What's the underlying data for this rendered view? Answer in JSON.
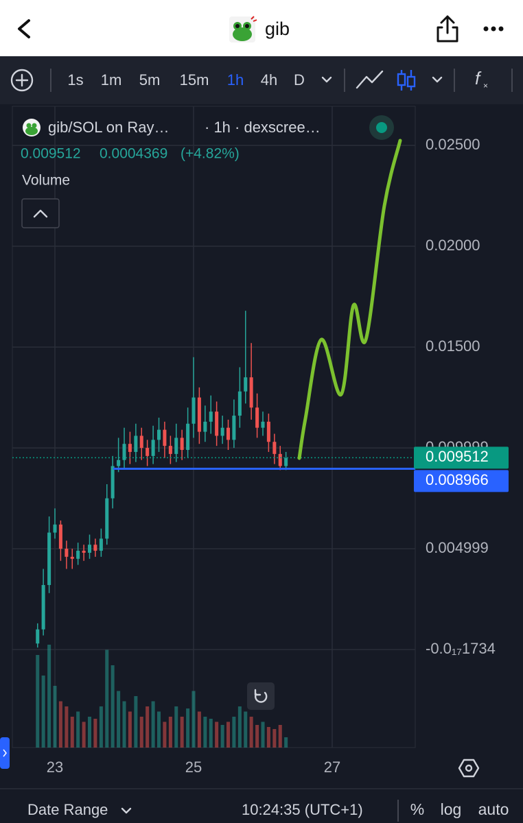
{
  "header": {
    "title": "gib"
  },
  "toolbar": {
    "intervals": [
      "1s",
      "1m",
      "5m",
      "15m",
      "1h",
      "4h",
      "D"
    ],
    "active_interval": "1h"
  },
  "legend": {
    "symbol": "gib/SOL on Ray…",
    "source": "· 1h · dexscree…",
    "change_label": "(+4.82%)",
    "volume_label": "Volume"
  },
  "chart_data": {
    "type": "candlestick",
    "up_color": "#26a69a",
    "down_color": "#ef5350",
    "x": [
      22.75,
      22.833,
      22.917,
      23.0,
      23.083,
      23.167,
      23.25,
      23.333,
      23.417,
      23.5,
      23.583,
      23.667,
      23.75,
      23.833,
      23.917,
      24.0,
      24.083,
      24.167,
      24.25,
      24.333,
      24.417,
      24.5,
      24.583,
      24.667,
      24.75,
      24.833,
      24.917,
      25.0,
      25.083,
      25.167,
      25.25,
      25.333,
      25.417,
      25.5,
      25.583,
      25.667,
      25.75,
      25.833,
      25.917,
      26.0,
      26.083,
      26.167,
      26.25,
      26.333
    ],
    "open": [
      0.0003,
      0.001,
      0.0032,
      0.0058,
      0.0062,
      0.005,
      0.0046,
      0.0045,
      0.0049,
      0.0048,
      0.0052,
      0.0049,
      0.0055,
      0.0075,
      0.0091,
      0.0094,
      0.0102,
      0.0098,
      0.0106,
      0.01,
      0.0096,
      0.0104,
      0.0109,
      0.0101,
      0.0097,
      0.0105,
      0.0099,
      0.0112,
      0.0125,
      0.0108,
      0.0113,
      0.0118,
      0.0106,
      0.011,
      0.0104,
      0.0116,
      0.0128,
      0.0135,
      0.012,
      0.011,
      0.0113,
      0.0103,
      0.0097,
      0.0091
    ],
    "high": [
      0.0013,
      0.004,
      0.0066,
      0.007,
      0.0064,
      0.0054,
      0.005,
      0.0053,
      0.0052,
      0.0057,
      0.0055,
      0.006,
      0.0082,
      0.0096,
      0.0105,
      0.011,
      0.0108,
      0.0112,
      0.011,
      0.0104,
      0.0111,
      0.0115,
      0.0113,
      0.0106,
      0.0112,
      0.0109,
      0.012,
      0.0145,
      0.013,
      0.0121,
      0.0126,
      0.0123,
      0.0116,
      0.0114,
      0.0124,
      0.014,
      0.0168,
      0.0152,
      0.0127,
      0.0118,
      0.0117,
      0.0107,
      0.0101,
      0.0098
    ],
    "low": [
      0.0001,
      0.0007,
      0.0028,
      0.0055,
      0.0044,
      0.004,
      0.004,
      0.0042,
      0.0044,
      0.0045,
      0.0046,
      0.0046,
      0.0052,
      0.007,
      0.0088,
      0.009,
      0.0092,
      0.0093,
      0.0094,
      0.0091,
      0.0092,
      0.0098,
      0.0095,
      0.0092,
      0.0093,
      0.0094,
      0.0095,
      0.0105,
      0.0102,
      0.0103,
      0.0107,
      0.0101,
      0.0102,
      0.0099,
      0.01,
      0.011,
      0.0122,
      0.0114,
      0.0105,
      0.0106,
      0.0098,
      0.0092,
      0.0089,
      0.0089
    ],
    "close": [
      0.001,
      0.0032,
      0.0058,
      0.0062,
      0.005,
      0.0046,
      0.0045,
      0.0049,
      0.0048,
      0.0052,
      0.0049,
      0.0055,
      0.0075,
      0.0091,
      0.0094,
      0.0102,
      0.0098,
      0.0106,
      0.01,
      0.0096,
      0.0104,
      0.0109,
      0.0101,
      0.0097,
      0.0105,
      0.0099,
      0.0112,
      0.0125,
      0.0108,
      0.0113,
      0.0118,
      0.0106,
      0.011,
      0.0104,
      0.0116,
      0.0128,
      0.0135,
      0.012,
      0.011,
      0.0113,
      0.0103,
      0.0097,
      0.0091,
      0.0095
    ],
    "volume": [
      90,
      70,
      100,
      60,
      45,
      40,
      30,
      35,
      25,
      30,
      28,
      40,
      95,
      80,
      55,
      45,
      35,
      50,
      30,
      40,
      45,
      35,
      25,
      30,
      40,
      30,
      38,
      55,
      35,
      30,
      28,
      25,
      22,
      25,
      30,
      40,
      35,
      30,
      22,
      25,
      20,
      18,
      22,
      10
    ],
    "last_price": 0.009512,
    "last_color": "#089981",
    "change": 0.0004369,
    "hline": {
      "value": 0.008966,
      "x": 23.84,
      "color": "#2962ff"
    },
    "annotation": {
      "color": "#7cc12f",
      "x": [
        26.525,
        26.614,
        26.842,
        27.129,
        27.307,
        27.485,
        27.752,
        27.98
      ],
      "y": [
        0.00949,
        0.01146,
        0.01537,
        0.01265,
        0.01707,
        0.01537,
        0.022,
        0.02524
      ]
    },
    "xlim": [
      22.386,
      28.198
    ],
    "xticks": [
      23,
      25,
      27
    ],
    "ylim": [
      -0.00486,
      0.02694
    ],
    "yticks": [
      {
        "value": -1.734e-21,
        "label": "-0.0₁₇1734"
      },
      {
        "value": 0.005,
        "label": "0.004999"
      },
      {
        "value": 0.01,
        "label": "0.009999"
      },
      {
        "value": 0.015,
        "label": "0.01500"
      },
      {
        "value": 0.02,
        "label": "0.02000"
      },
      {
        "value": 0.025,
        "label": "0.02500"
      }
    ],
    "grid": true
  },
  "footer": {
    "date_range": "Date Range",
    "time": "10:24:35 (UTC+1)",
    "options": [
      "%",
      "log",
      "auto"
    ]
  }
}
